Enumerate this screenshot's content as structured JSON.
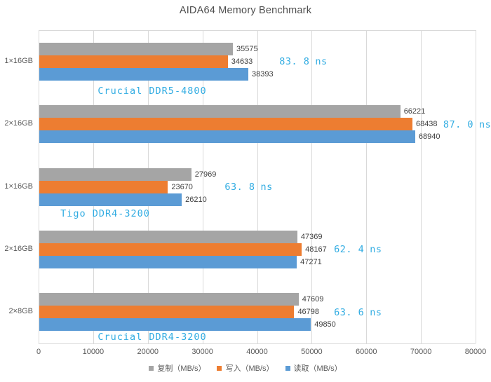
{
  "title": "AIDA64 Memory Benchmark",
  "colors": {
    "background": "#ffffff",
    "gridline": "#d9d9d9",
    "axis_text": "#595959",
    "value_text": "#404040",
    "accent_cyan": "#31ace2",
    "bar_copy": "#a5a5a5",
    "bar_write": "#ed7d31",
    "bar_read": "#5b9bd5"
  },
  "legend": {
    "items": [
      {
        "label": "复制（MB/s）",
        "color": "#a5a5a5"
      },
      {
        "label": "写入（MB/s）",
        "color": "#ed7d31"
      },
      {
        "label": "读取（MB/s）",
        "color": "#5b9bd5"
      }
    ]
  },
  "chart_data": {
    "type": "bar",
    "orientation": "horizontal",
    "title": "AIDA64 Memory Benchmark",
    "xlabel": "",
    "ylabel": "",
    "xlim": [
      0,
      80000
    ],
    "x_ticks": [
      0,
      10000,
      20000,
      30000,
      40000,
      50000,
      60000,
      70000,
      80000
    ],
    "grid": true,
    "legend_position": "bottom",
    "series_keys": [
      "copy",
      "write",
      "read"
    ],
    "series_names": [
      "复制（MB/s）",
      "写入（MB/s）",
      "读取（MB/s）"
    ],
    "series_colors": [
      "#a5a5a5",
      "#ed7d31",
      "#5b9bd5"
    ],
    "latency_unit": "ns",
    "groups": [
      {
        "label": "1×16GB",
        "copy": 35575,
        "write": 34633,
        "read": 38393,
        "latency_ns": "83.8",
        "latency_anchor_x": 50000
      },
      {
        "label": "2×16GB",
        "copy": 66221,
        "write": 68438,
        "read": 68940,
        "latency_ns": "87.0",
        "latency_anchor_x": 80000
      },
      {
        "label": "1×16GB",
        "copy": 27969,
        "write": 23670,
        "read": 26210,
        "latency_ns": "63.8",
        "latency_anchor_x": 40000
      },
      {
        "label": "2×16GB",
        "copy": 47369,
        "write": 48167,
        "read": 47271,
        "latency_ns": "62.4",
        "latency_anchor_x": 60000
      },
      {
        "label": "2×8GB",
        "copy": 47609,
        "write": 46798,
        "read": 49850,
        "latency_ns": "63.6",
        "latency_anchor_x": 60000
      }
    ],
    "annotations": [
      {
        "text": "Crucial DDR5-4800",
        "x": 217,
        "y": 131
      },
      {
        "text": "Tigo DDR4-3200",
        "x": 150,
        "y": 306
      },
      {
        "text": "Crucial DDR4-3200",
        "x": 217,
        "y": 482
      }
    ]
  }
}
